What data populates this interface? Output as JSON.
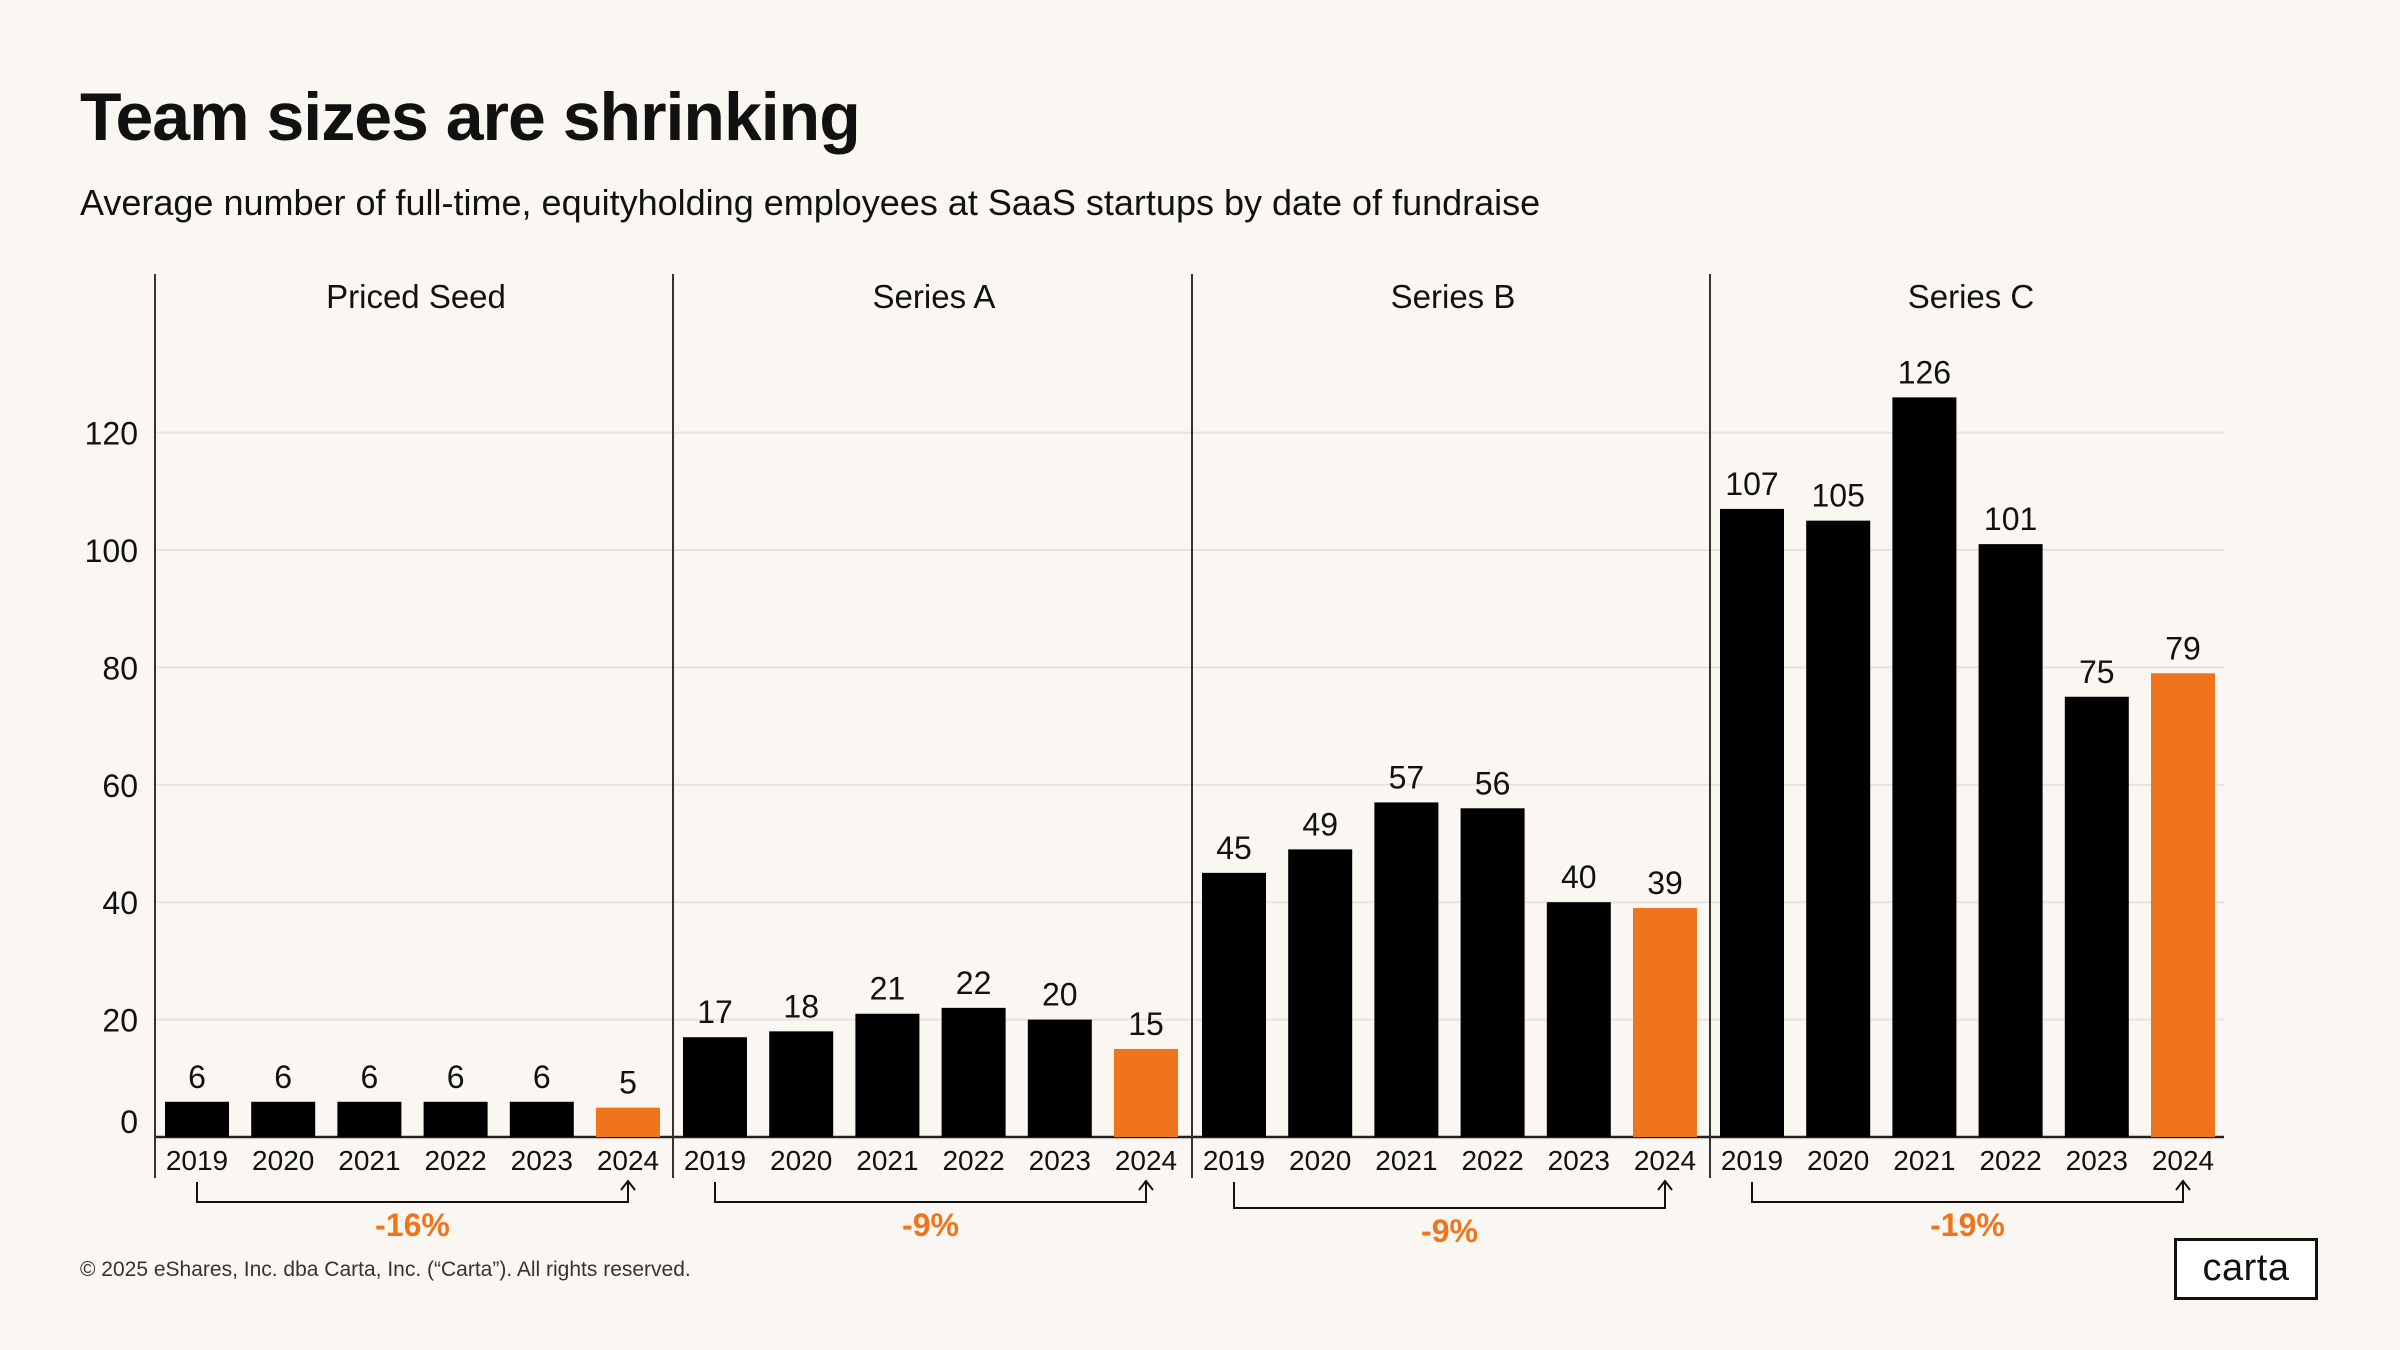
{
  "title": "Team sizes are shrinking",
  "subtitle": "Average number of full-time, equityholding employees at SaaS startups by date of fundraise",
  "footer": {
    "copyright": "© 2025 eShares, Inc. dba Carta, Inc. (“Carta”). All rights reserved.",
    "logo": "carta"
  },
  "colors": {
    "bar": "#000000",
    "highlight": "#f0741c",
    "grid": "#e6e3dc",
    "axis": "#222222",
    "background": "#faf7f3"
  },
  "chart_data": {
    "type": "bar",
    "title": "Team sizes are shrinking",
    "subtitle": "Average number of full-time, equityholding employees at SaaS startups by date of fundraise",
    "ylim": [
      0,
      130
    ],
    "yticks": [
      0,
      20,
      40,
      60,
      80,
      100,
      120
    ],
    "grid": true,
    "highlight_category": "2024",
    "panels": [
      {
        "name": "Priced Seed",
        "categories": [
          "2019",
          "2020",
          "2021",
          "2022",
          "2023",
          "2024"
        ],
        "values": [
          6,
          6,
          6,
          6,
          6,
          5
        ],
        "change": "-16%"
      },
      {
        "name": "Series A",
        "categories": [
          "2019",
          "2020",
          "2021",
          "2022",
          "2023",
          "2024"
        ],
        "values": [
          17,
          18,
          21,
          22,
          20,
          15
        ],
        "change": "-9%"
      },
      {
        "name": "Series B",
        "categories": [
          "2019",
          "2020",
          "2021",
          "2022",
          "2023",
          "2024"
        ],
        "values": [
          45,
          49,
          57,
          56,
          40,
          39
        ],
        "change": "-9%"
      },
      {
        "name": "Series C",
        "categories": [
          "2019",
          "2020",
          "2021",
          "2022",
          "2023",
          "2024"
        ],
        "values": [
          107,
          105,
          126,
          101,
          75,
          79
        ],
        "change": "-19%"
      }
    ]
  }
}
